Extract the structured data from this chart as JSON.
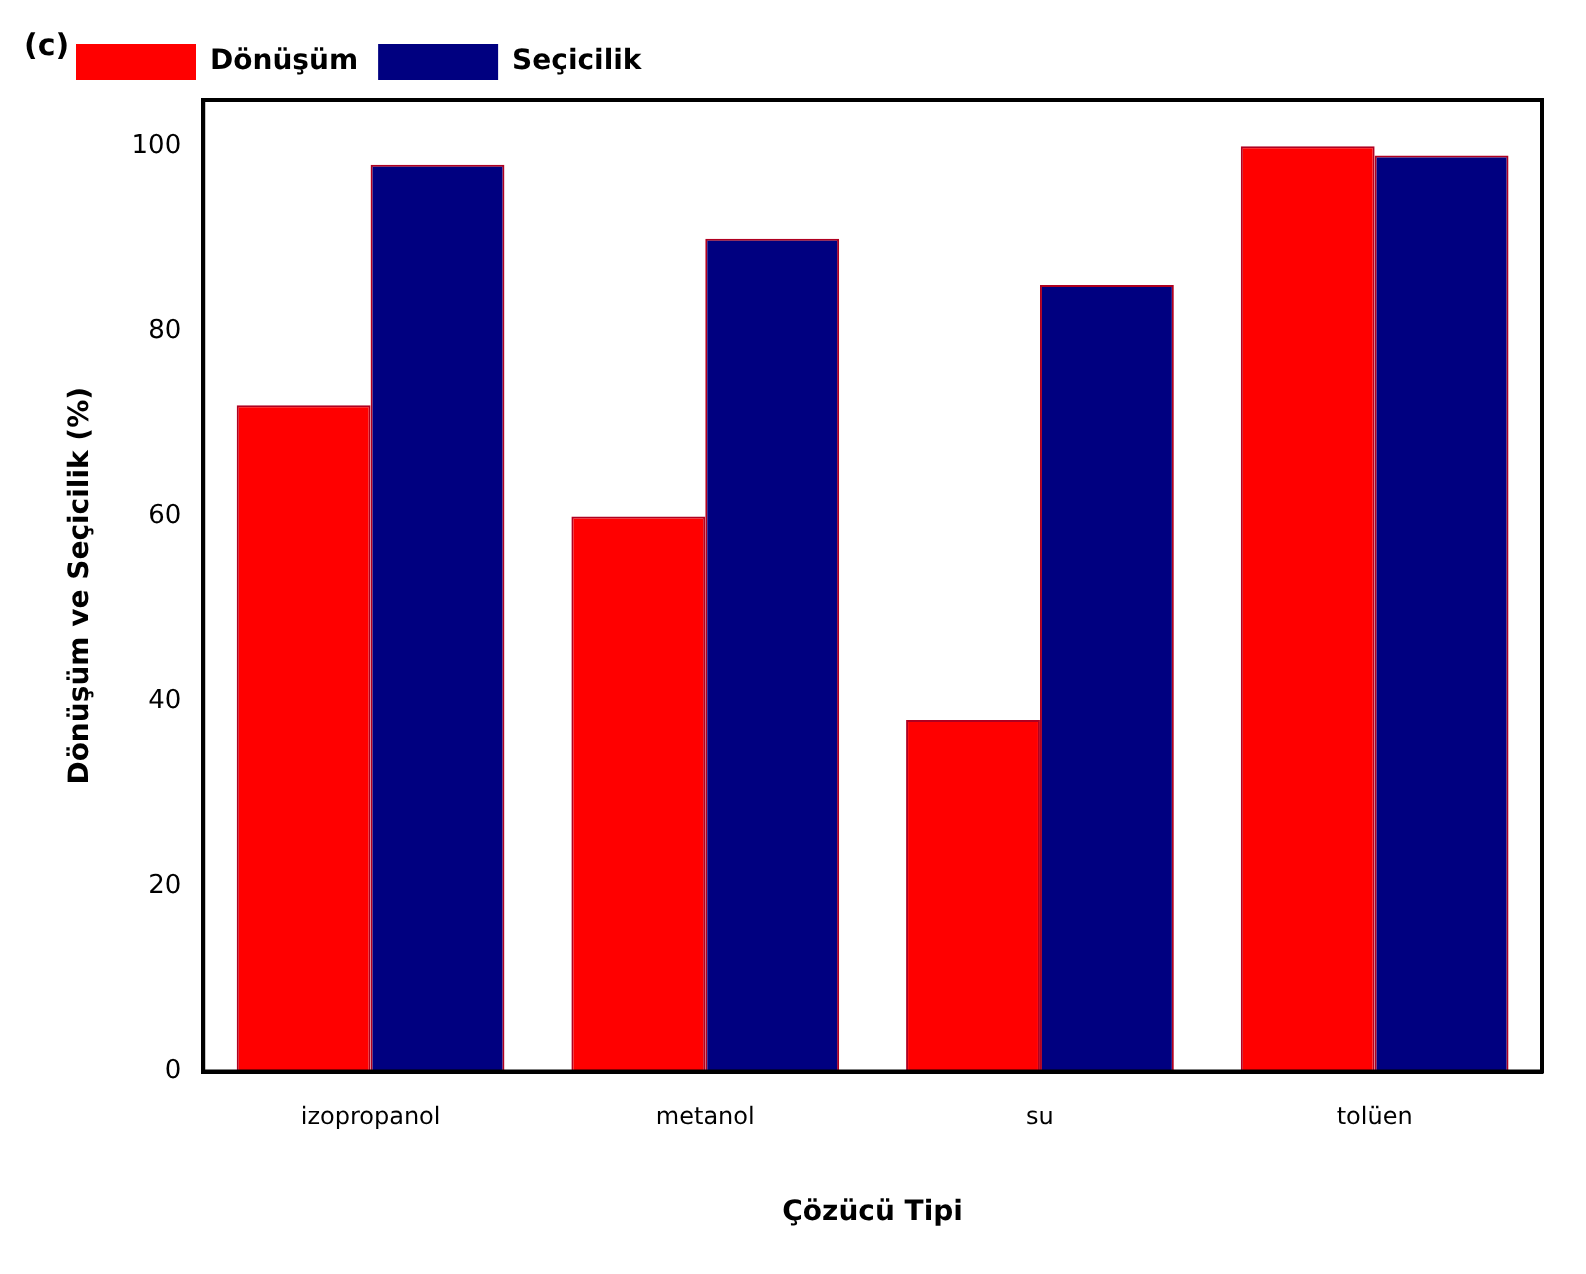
{
  "chart_data": {
    "type": "bar",
    "xlabel": "Çözücü Tipi",
    "ylabel": "Dönüşüm ve Seçicilik (%)",
    "annotations": [
      "(c)"
    ],
    "categories": [
      "izopropanol",
      "metanol",
      "su",
      "tolüen"
    ],
    "series": [
      {
        "name": "Dönüşüm",
        "color": "#ff0000",
        "values": [
          72,
          60,
          38,
          100
        ]
      },
      {
        "name": "Seçicilik",
        "color": "#000080",
        "values": [
          98,
          90,
          85,
          99
        ]
      }
    ],
    "ylim": [
      0,
      105
    ],
    "yticks": [
      0,
      20,
      40,
      60,
      80,
      100
    ],
    "grid": false,
    "legend": "top left"
  }
}
